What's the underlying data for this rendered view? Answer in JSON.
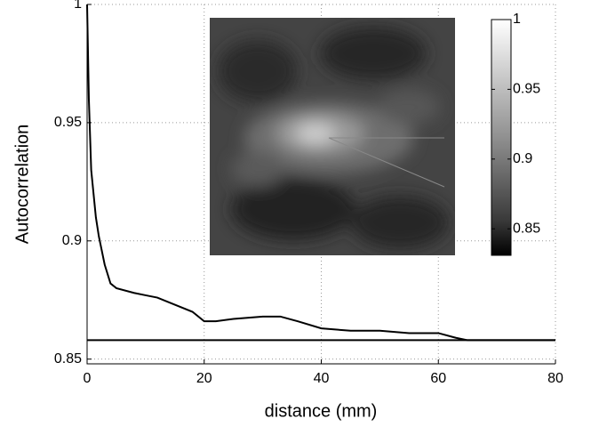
{
  "chart_data": {
    "type": "line",
    "xlabel": "distance (mm)",
    "ylabel": "Autocorrelation",
    "xlim": [
      0,
      80
    ],
    "xticks": [
      0,
      20,
      40,
      60,
      80
    ],
    "ylim": [
      0.848,
      1.0
    ],
    "yticks": [
      0.85,
      0.9,
      0.95,
      1
    ],
    "grid": true,
    "x": [
      0,
      0.3,
      0.7,
      1.5,
      2,
      3,
      4,
      5,
      8,
      10,
      12,
      15,
      18,
      20,
      22,
      25,
      30,
      33,
      36,
      40,
      45,
      50,
      55,
      60,
      63,
      65,
      70,
      75,
      80
    ],
    "series": [
      {
        "color": "#000000",
        "values": [
          1.0,
          0.96,
          0.93,
          0.91,
          0.902,
          0.89,
          0.882,
          0.88,
          0.878,
          0.877,
          0.876,
          0.873,
          0.87,
          0.866,
          0.866,
          0.867,
          0.868,
          0.868,
          0.866,
          0.863,
          0.862,
          0.862,
          0.861,
          0.861,
          0.859,
          0.858,
          0.858,
          0.858,
          0.858
        ]
      }
    ],
    "reference_line": {
      "value": 0.858,
      "color": "#000000"
    },
    "colorbar": {
      "lim": [
        0.831,
        1
      ],
      "ticks": [
        1,
        0.95,
        0.9,
        0.85
      ]
    }
  }
}
